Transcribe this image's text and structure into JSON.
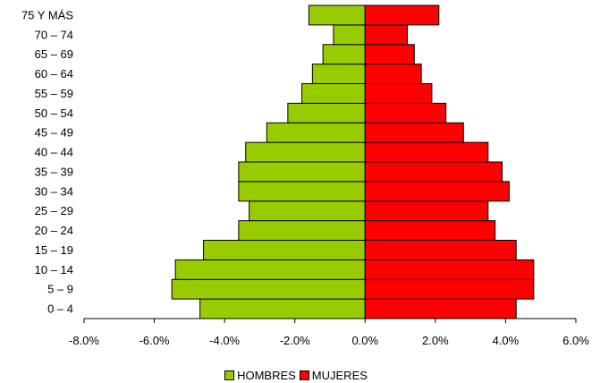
{
  "chart_data": {
    "type": "bar",
    "orientation": "horizontal",
    "categories": [
      "0 – 4",
      "5 – 9",
      "10 – 14",
      "15 – 19",
      "20 – 24",
      "25 – 29",
      "30 – 34",
      "35 – 39",
      "40 – 44",
      "45 – 49",
      "50 – 54",
      "55 – 59",
      "60 – 64",
      "65 – 69",
      "70 – 74",
      "75 Y MÁS"
    ],
    "series": [
      {
        "name": "HOMBRES",
        "color": "#99cc00",
        "values": [
          -4.7,
          -5.5,
          -5.4,
          -4.6,
          -3.6,
          -3.3,
          -3.6,
          -3.6,
          -3.4,
          -2.8,
          -2.2,
          -1.8,
          -1.5,
          -1.2,
          -0.9,
          -1.6
        ]
      },
      {
        "name": "MUJERES",
        "color": "#ff0000",
        "values": [
          4.3,
          4.8,
          4.8,
          4.3,
          3.7,
          3.5,
          4.1,
          3.9,
          3.5,
          2.8,
          2.3,
          1.9,
          1.6,
          1.4,
          1.2,
          2.1
        ]
      }
    ],
    "xticks": [
      "-8.0%",
      "-6.0%",
      "-4.0%",
      "-2.0%",
      "0.0%",
      "2.0%",
      "4.0%",
      "6.0%"
    ],
    "xlim": [
      -8,
      6
    ],
    "legend_position": "bottom",
    "grid": false
  }
}
